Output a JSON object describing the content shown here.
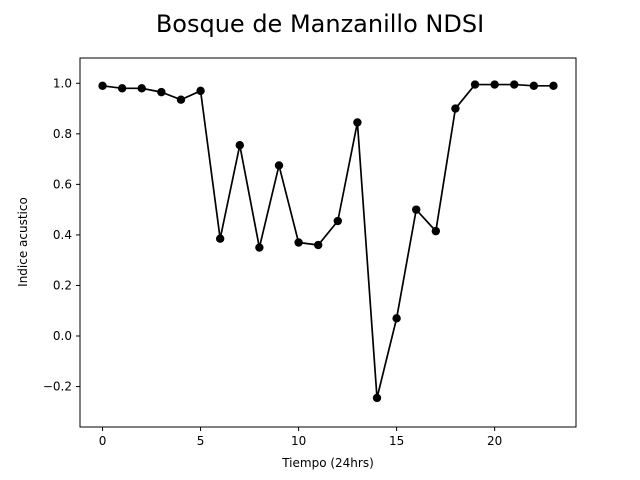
{
  "chart_data": {
    "type": "line",
    "title": "Bosque de Manzanillo NDSI",
    "xlabel": "Tiempo (24hrs)",
    "ylabel": "Indice acustico",
    "xlim": [
      -1.15,
      24.15
    ],
    "ylim": [
      -0.36,
      1.1
    ],
    "xticks": [
      0,
      5,
      10,
      15,
      20
    ],
    "xtick_labels": [
      "0",
      "5",
      "10",
      "15",
      "20"
    ],
    "yticks": [
      -0.2,
      0.0,
      0.2,
      0.4,
      0.6,
      0.8,
      1.0
    ],
    "ytick_labels": [
      "−0.2",
      "0.0",
      "0.2",
      "0.4",
      "0.6",
      "0.8",
      "1.0"
    ],
    "grid": false,
    "series": [
      {
        "color": "#000000",
        "marker": "circle",
        "x": [
          0,
          1,
          2,
          3,
          4,
          5,
          6,
          7,
          8,
          9,
          10,
          11,
          12,
          13,
          14,
          15,
          16,
          17,
          18,
          19,
          20,
          21,
          22,
          23
        ],
        "values": [
          0.99,
          0.98,
          0.98,
          0.965,
          0.935,
          0.97,
          0.385,
          0.755,
          0.35,
          0.675,
          0.37,
          0.36,
          0.455,
          0.845,
          -0.245,
          0.07,
          0.5,
          0.415,
          0.9,
          0.995,
          0.995,
          0.995,
          0.99,
          0.99
        ]
      }
    ]
  }
}
